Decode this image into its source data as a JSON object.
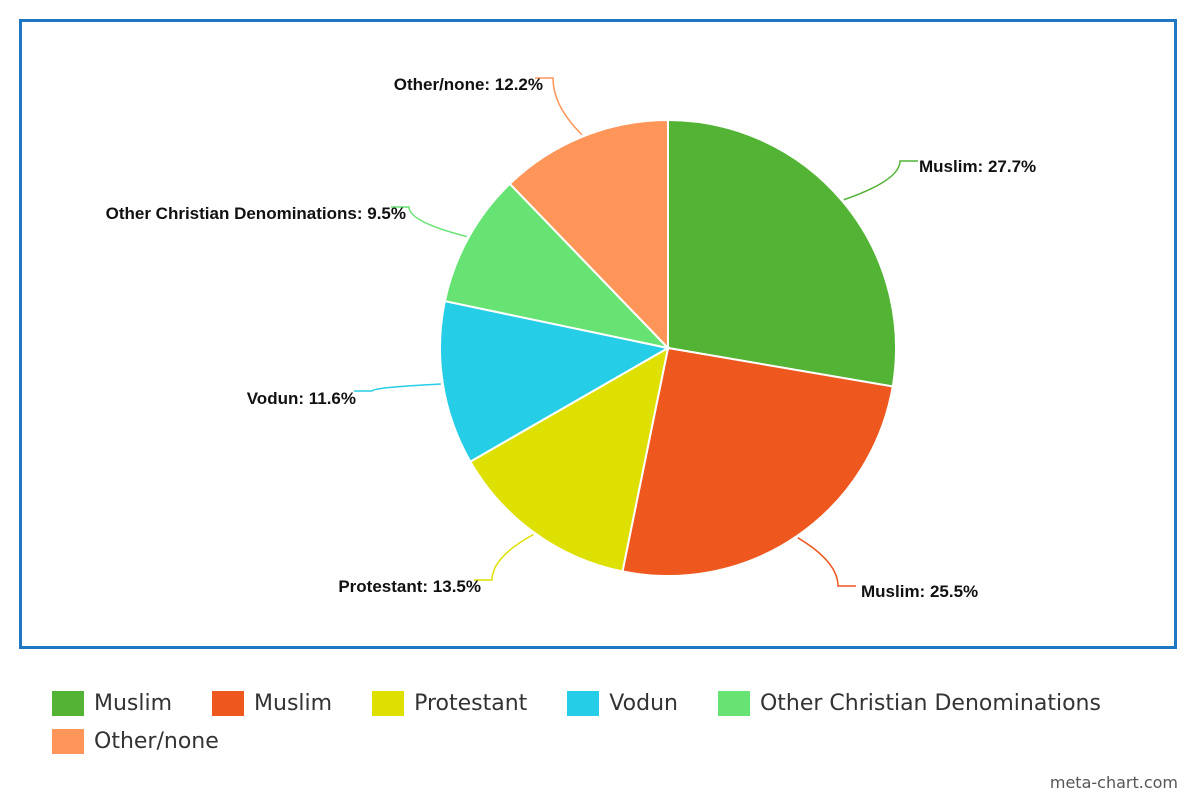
{
  "chart_data": {
    "type": "pie",
    "slices": [
      {
        "name": "Muslim",
        "value": 27.7,
        "label": "Muslim: 27.7%",
        "color": "#52b335"
      },
      {
        "name": "Muslim",
        "value": 25.5,
        "label": "Muslim: 25.5%",
        "color": "#ee571e"
      },
      {
        "name": "Protestant",
        "value": 13.5,
        "label": "Protestant: 13.5%",
        "color": "#dde000"
      },
      {
        "name": "Vodun",
        "value": 11.6,
        "label": "Vodun: 11.6%",
        "color": "#26cde6"
      },
      {
        "name": "Other Christian Denominations",
        "value": 9.5,
        "label": "Other Christian Denominations: 9.5%",
        "color": "#66e373"
      },
      {
        "name": "Other/none",
        "value": 12.2,
        "label": "Other/none: 12.2%",
        "color": "#ff9558"
      }
    ],
    "legend_position": "bottom"
  },
  "legend": [
    {
      "label": "Muslim",
      "color": "#52b335"
    },
    {
      "label": "Muslim",
      "color": "#ee571e"
    },
    {
      "label": "Protestant",
      "color": "#dde000"
    },
    {
      "label": "Vodun",
      "color": "#26cde6"
    },
    {
      "label": "Other Christian Denominations",
      "color": "#66e373"
    },
    {
      "label": "Other/none",
      "color": "#ff9558"
    }
  ],
  "frame_color": "#1f77c4",
  "footer": {
    "text": "meta-chart.com"
  }
}
